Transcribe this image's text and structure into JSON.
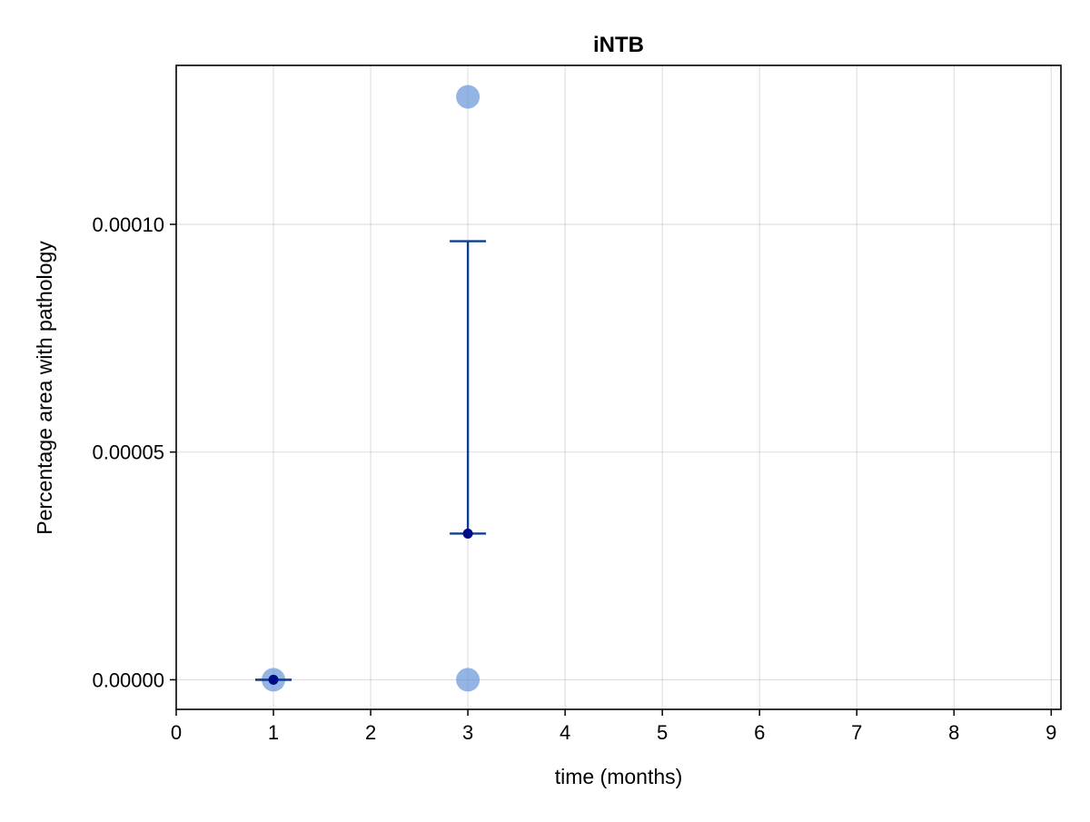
{
  "chart_data": {
    "type": "scatter",
    "title": "iNTB",
    "xlabel": "time (months)",
    "ylabel": "Percentage area with pathology",
    "xlim": [
      0,
      9.1
    ],
    "ylim": [
      -6.5e-06,
      0.0001349
    ],
    "xticks": [
      0,
      1,
      2,
      3,
      4,
      5,
      6,
      7,
      8,
      9
    ],
    "xtick_labels": [
      "0",
      "1",
      "2",
      "3",
      "4",
      "5",
      "6",
      "7",
      "8",
      "9"
    ],
    "yticks": [
      0,
      5e-05,
      0.0001
    ],
    "ytick_labels": [
      "0.00000",
      "0.00005",
      "0.00010"
    ],
    "grid": true,
    "colors": {
      "points": "#5b8ed6",
      "points_opaque": "#2a5ec0",
      "errorbar": "#0d3f91",
      "mean": "#000b8a"
    },
    "points": [
      {
        "x": 1,
        "y": 0.0
      },
      {
        "x": 3,
        "y": 0.000128
      },
      {
        "x": 3,
        "y": 0.0
      }
    ],
    "means": [
      {
        "x": 1,
        "y": 0.0,
        "low": 0.0,
        "high": 0.0
      },
      {
        "x": 3,
        "y": 3.21e-05,
        "low": 3.21e-05,
        "high": 9.63e-05
      }
    ]
  }
}
